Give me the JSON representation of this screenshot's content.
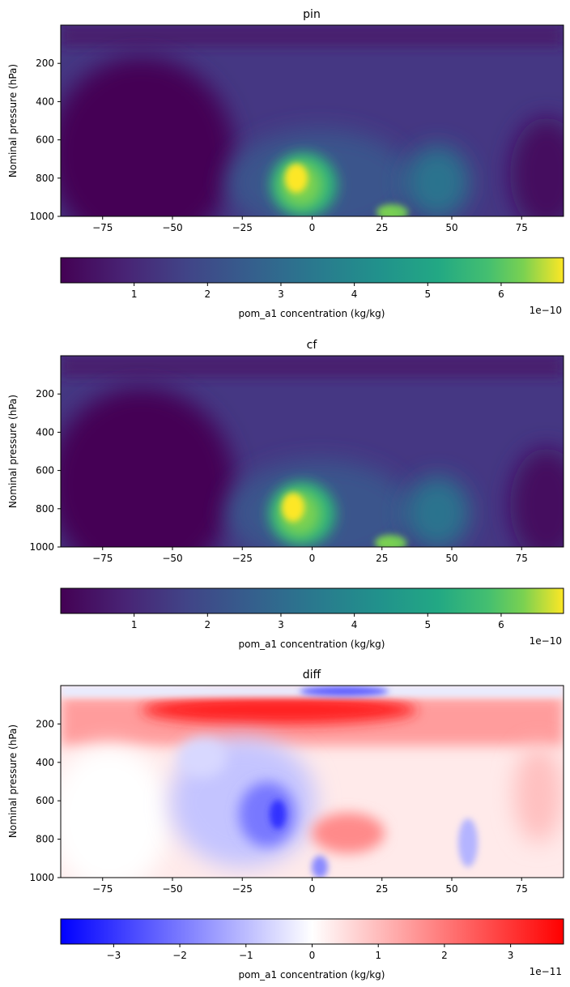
{
  "chart_data": [
    {
      "type": "heatmap",
      "title": "pin",
      "xlabel": "",
      "ylabel": "Nominal pressure (hPa)",
      "xlim": [
        -90,
        90
      ],
      "ylim": [
        1000,
        0
      ],
      "xticks": [
        "−75",
        "−50",
        "−25",
        "0",
        "25",
        "50",
        "75"
      ],
      "yticks": [
        "200",
        "400",
        "600",
        "800",
        "1000"
      ],
      "colormap": "viridis",
      "colorbar": {
        "label": "pom_a1 concentration (kg/kg)",
        "range": [
          0,
          6.85
        ],
        "ticks": [
          "1",
          "2",
          "3",
          "4",
          "5",
          "6"
        ],
        "multiplier": "1e−10"
      },
      "features": [
        {
          "lat": -5,
          "pressure": 850,
          "value": 6.8
        },
        {
          "lat": 30,
          "pressure": 990,
          "value": 5.0
        },
        {
          "lat": 45,
          "pressure": 800,
          "value": 2.5
        }
      ]
    },
    {
      "type": "heatmap",
      "title": "cf",
      "xlabel": "",
      "ylabel": "Nominal pressure (hPa)",
      "xlim": [
        -90,
        90
      ],
      "ylim": [
        1000,
        0
      ],
      "xticks": [
        "−75",
        "−50",
        "−25",
        "0",
        "25",
        "50",
        "75"
      ],
      "yticks": [
        "200",
        "400",
        "600",
        "800",
        "1000"
      ],
      "colormap": "viridis",
      "colorbar": {
        "label": "pom_a1 concentration (kg/kg)",
        "range": [
          0,
          6.85
        ],
        "ticks": [
          "1",
          "2",
          "3",
          "4",
          "5",
          "6"
        ],
        "multiplier": "1e−10"
      },
      "features": [
        {
          "lat": -6,
          "pressure": 840,
          "value": 6.8
        },
        {
          "lat": 28,
          "pressure": 990,
          "value": 4.8
        },
        {
          "lat": 45,
          "pressure": 800,
          "value": 2.5
        }
      ]
    },
    {
      "type": "heatmap",
      "title": "diff",
      "xlabel": "",
      "ylabel": "Nominal pressure (hPa)",
      "xlim": [
        -90,
        90
      ],
      "ylim": [
        1000,
        0
      ],
      "xticks": [
        "−75",
        "−50",
        "−25",
        "0",
        "25",
        "50",
        "75"
      ],
      "yticks": [
        "200",
        "400",
        "600",
        "800",
        "1000"
      ],
      "colormap": "bwr",
      "colorbar": {
        "label": "pom_a1 concentration (kg/kg)",
        "range": [
          -3.8,
          3.8
        ],
        "ticks": [
          "−3",
          "−2",
          "−1",
          "0",
          "1",
          "2",
          "3"
        ],
        "multiplier": "1e−11"
      },
      "features": [
        {
          "lat": -10,
          "pressure": 90,
          "value": 3.8
        },
        {
          "lat": -12,
          "pressure": 700,
          "value": -3.5
        },
        {
          "lat": 5,
          "pressure": 30,
          "value": -2.5
        }
      ]
    }
  ]
}
